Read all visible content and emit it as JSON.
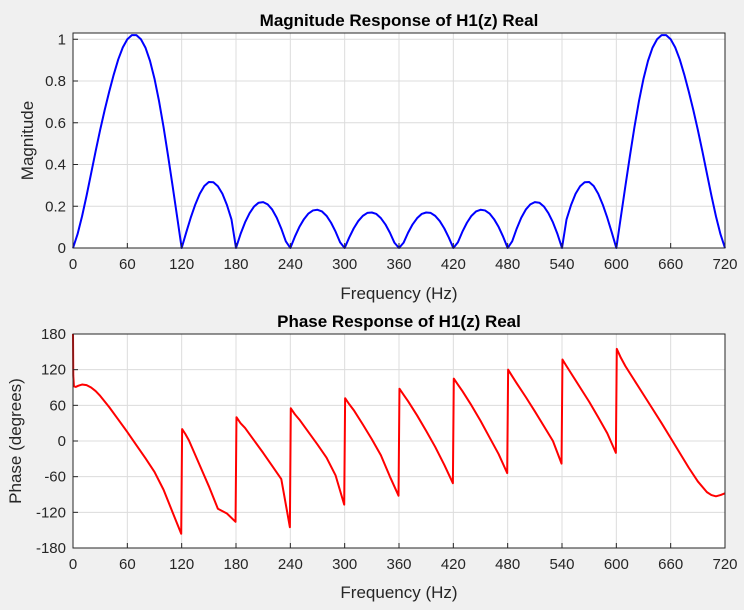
{
  "chart_data": [
    {
      "type": "line",
      "title": "Magnitude Response of H1(z) Real",
      "xlabel": "Frequency (Hz)",
      "ylabel": "Magnitude",
      "xlim": [
        0,
        720
      ],
      "ylim": [
        0,
        1.03
      ],
      "xticks": [
        0,
        60,
        120,
        180,
        240,
        300,
        360,
        420,
        480,
        540,
        600,
        660,
        720
      ],
      "yticks": [
        0,
        0.2,
        0.4,
        0.6,
        0.8,
        1
      ],
      "grid": true,
      "color": "#0000ff",
      "series": [
        {
          "name": "Magnitude",
          "x": [
            0,
            5,
            10,
            15,
            20,
            25,
            30,
            35,
            40,
            45,
            50,
            55,
            60,
            65,
            70,
            75,
            80,
            85,
            90,
            95,
            100,
            105,
            110,
            115,
            120,
            125,
            130,
            135,
            140,
            145,
            150,
            155,
            160,
            165,
            170,
            175,
            180,
            185,
            190,
            195,
            200,
            205,
            210,
            215,
            220,
            225,
            230,
            235,
            240,
            245,
            250,
            255,
            260,
            265,
            270,
            275,
            280,
            285,
            290,
            295,
            300,
            305,
            310,
            315,
            320,
            325,
            330,
            335,
            340,
            345,
            350,
            355,
            360,
            365,
            370,
            375,
            380,
            385,
            390,
            395,
            400,
            405,
            410,
            415,
            420,
            425,
            430,
            435,
            440,
            445,
            450,
            455,
            460,
            465,
            470,
            475,
            480,
            485,
            490,
            495,
            500,
            505,
            510,
            515,
            520,
            525,
            530,
            535,
            540,
            545,
            550,
            555,
            560,
            565,
            570,
            575,
            580,
            585,
            590,
            595,
            600,
            605,
            610,
            615,
            620,
            625,
            630,
            635,
            640,
            645,
            650,
            655,
            660,
            665,
            670,
            675,
            680,
            685,
            690,
            695,
            700,
            705,
            710,
            715,
            720
          ],
          "y": [
            0,
            0.066,
            0.152,
            0.251,
            0.357,
            0.464,
            0.566,
            0.661,
            0.749,
            0.831,
            0.904,
            0.961,
            1.0,
            1.02,
            1.02,
            1.0,
            0.96,
            0.897,
            0.811,
            0.704,
            0.579,
            0.441,
            0.297,
            0.149,
            0,
            0.074,
            0.145,
            0.208,
            0.26,
            0.297,
            0.316,
            0.315,
            0.296,
            0.26,
            0.206,
            0.137,
            0.0,
            0.067,
            0.123,
            0.167,
            0.199,
            0.217,
            0.22,
            0.209,
            0.184,
            0.145,
            0.093,
            0.032,
            0,
            0.054,
            0.101,
            0.138,
            0.165,
            0.18,
            0.183,
            0.175,
            0.154,
            0.121,
            0.078,
            0.027,
            0,
            0.05,
            0.094,
            0.129,
            0.154,
            0.168,
            0.17,
            0.163,
            0.143,
            0.113,
            0.073,
            0.025,
            0,
            0.025,
            0.073,
            0.113,
            0.143,
            0.163,
            0.17,
            0.168,
            0.154,
            0.129,
            0.094,
            0.05,
            0,
            0.027,
            0.078,
            0.121,
            0.154,
            0.175,
            0.183,
            0.18,
            0.165,
            0.138,
            0.101,
            0.054,
            0,
            0.032,
            0.093,
            0.145,
            0.184,
            0.209,
            0.22,
            0.217,
            0.199,
            0.167,
            0.123,
            0.067,
            0.0,
            0.137,
            0.206,
            0.26,
            0.296,
            0.315,
            0.316,
            0.297,
            0.26,
            0.208,
            0.145,
            0.074,
            0,
            0.149,
            0.297,
            0.441,
            0.579,
            0.704,
            0.811,
            0.897,
            0.96,
            1.0,
            1.02,
            1.02,
            1.0,
            0.961,
            0.904,
            0.831,
            0.749,
            0.661,
            0.566,
            0.464,
            0.357,
            0.251,
            0.152,
            0.066,
            0
          ]
        }
      ]
    },
    {
      "type": "line",
      "title": "Phase Response of H1(z) Real",
      "xlabel": "Frequency (Hz)",
      "ylabel": "Phase (degrees)",
      "xlim": [
        0,
        720
      ],
      "ylim": [
        -180,
        180
      ],
      "xticks": [
        0,
        60,
        120,
        180,
        240,
        300,
        360,
        420,
        480,
        540,
        600,
        660,
        720
      ],
      "yticks": [
        -180,
        -120,
        -60,
        0,
        60,
        120,
        180
      ],
      "grid": true,
      "color": "#ff0000",
      "series": [
        {
          "name": "Phase",
          "x": [
            0,
            0.3,
            1,
            3,
            6,
            10,
            15,
            20,
            25,
            30,
            40,
            50,
            60,
            70,
            80,
            90,
            100,
            110,
            119.5,
            120.5,
            124,
            128,
            140,
            150,
            160,
            170,
            179.5,
            180.5,
            185,
            190,
            200,
            210,
            220,
            230,
            239.5,
            240.5,
            245,
            250,
            260,
            270,
            280,
            290,
            299.5,
            300.5,
            305,
            310,
            320,
            330,
            340,
            350,
            359.5,
            360.5,
            365,
            370,
            380,
            390,
            400,
            410,
            419.5,
            420.5,
            425,
            430,
            440,
            450,
            460,
            470,
            479.5,
            480.5,
            485,
            490,
            500,
            510,
            520,
            530,
            539.5,
            540.5,
            545,
            550,
            560,
            570,
            580,
            590,
            599.5,
            600.5,
            605,
            610,
            620,
            630,
            640,
            650,
            660,
            670,
            680,
            690,
            700,
            705,
            710,
            715,
            720
          ],
          "y": [
            180,
            110,
            92,
            91,
            93,
            95,
            94,
            90,
            84,
            76,
            57,
            36,
            15,
            -7,
            -29,
            -52,
            -82,
            -120,
            -156,
            20,
            12,
            1,
            -41,
            -76,
            -114,
            -122,
            -136,
            40,
            30,
            22,
            1,
            -20,
            -42,
            -64,
            -145,
            55,
            45,
            36,
            15,
            -6,
            -28,
            -58,
            -107,
            72,
            62,
            52,
            28,
            3,
            -24,
            -60,
            -92,
            88,
            78,
            67,
            43,
            17,
            -10,
            -40,
            -71,
            105,
            95,
            84,
            60,
            34,
            6,
            -22,
            -54,
            120,
            109,
            97,
            74,
            50,
            25,
            0,
            -38,
            137,
            126,
            114,
            90,
            66,
            40,
            13,
            -20,
            155,
            140,
            126,
            102,
            78,
            54,
            30,
            5,
            -20,
            -45,
            -68,
            -86,
            -91,
            -93,
            -91,
            -88
          ]
        }
      ]
    }
  ]
}
